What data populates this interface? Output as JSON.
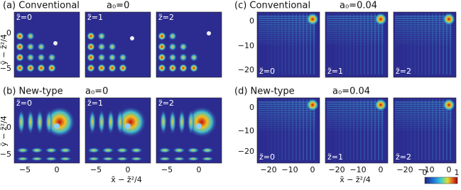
{
  "panels": [
    {
      "title": "(a) Conventional",
      "param": "a₀=0",
      "labels": [
        "z̃=0",
        "z̃=1",
        "z̃=2"
      ]
    },
    {
      "title": "(b) New-type",
      "param": "a₀=0",
      "labels": [
        "z̃=0",
        "z̃=1",
        "z̃=2"
      ]
    },
    {
      "title": "(c) Conventional",
      "param": "a₀=0.04",
      "labels": [
        "z̃=0",
        "z̃=1",
        "z̃=2"
      ]
    },
    {
      "title": "(d) New-type",
      "param": "a₀=0.04",
      "labels": [
        "z̃=0",
        "z̃=1",
        "z̃=2"
      ]
    }
  ],
  "left_axes": {
    "yticks": [
      "0",
      "−5"
    ],
    "xticks": [
      "−5",
      "0"
    ],
    "ylabel": "ỹ − z̃²/4",
    "xlabel": "x̃ − z̃²/4"
  },
  "right_axes": {
    "yticks": [
      "0",
      "−10",
      "−20"
    ],
    "xticks": [
      "−20",
      "−10",
      "0"
    ]
  },
  "colorbar": {
    "ticks": [
      "0",
      "1"
    ]
  }
}
